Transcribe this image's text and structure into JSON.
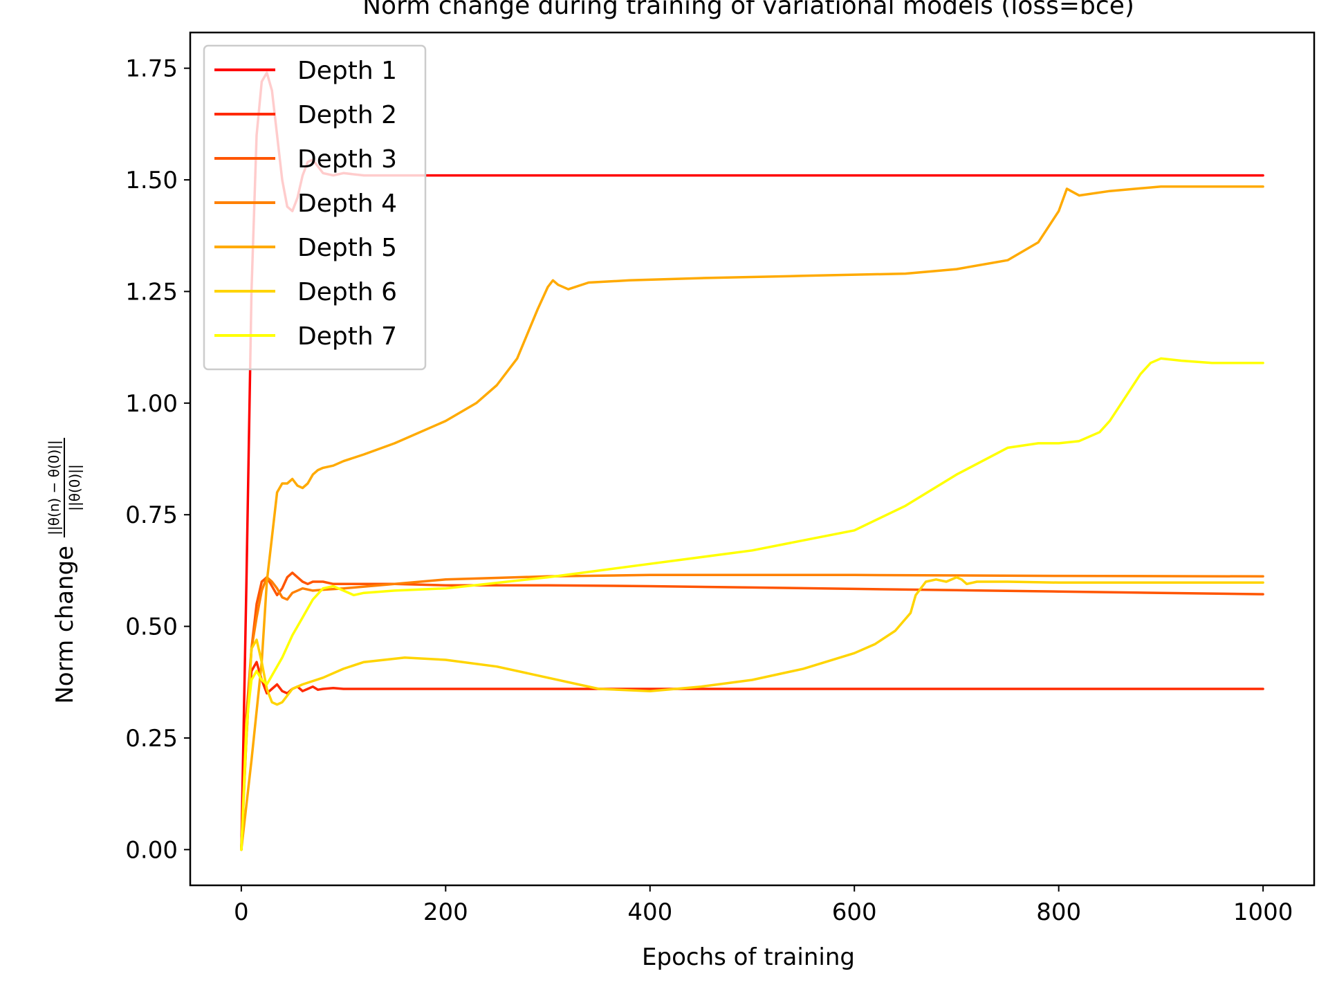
{
  "chart_data": {
    "type": "line",
    "title": "Norm change during training of variational models (loss=bce)",
    "xlabel": "Epochs of training",
    "ylabel": {
      "prefix": "Norm change",
      "numerator": "||θ(n) − θ(0)||",
      "denominator": "||θ(0)||"
    },
    "xlim": [
      -50,
      1050
    ],
    "ylim": [
      -0.08,
      1.83
    ],
    "xticks": [
      0,
      200,
      400,
      600,
      800,
      1000
    ],
    "xtick_labels": [
      "0",
      "200",
      "400",
      "600",
      "800",
      "1000"
    ],
    "yticks": [
      0.0,
      0.25,
      0.5,
      0.75,
      1.0,
      1.25,
      1.5,
      1.75
    ],
    "ytick_labels": [
      "0.00",
      "0.25",
      "0.50",
      "0.75",
      "1.00",
      "1.25",
      "1.50",
      "1.75"
    ],
    "grid": false,
    "legend": {
      "placement": "top-left",
      "frame_color": "#cccccc",
      "alpha": 0.8
    },
    "series": [
      {
        "name": "Depth 1",
        "color": "#ff0000",
        "x": [
          0,
          5,
          10,
          15,
          20,
          25,
          30,
          35,
          40,
          45,
          50,
          55,
          60,
          65,
          70,
          75,
          80,
          90,
          100,
          120,
          150,
          200,
          400,
          600,
          800,
          1000
        ],
        "y": [
          0.0,
          0.6,
          1.25,
          1.6,
          1.72,
          1.74,
          1.7,
          1.6,
          1.5,
          1.44,
          1.43,
          1.46,
          1.51,
          1.54,
          1.545,
          1.53,
          1.515,
          1.51,
          1.515,
          1.51,
          1.51,
          1.51,
          1.51,
          1.51,
          1.51,
          1.51
        ]
      },
      {
        "name": "Depth 2",
        "color": "#ff2a00",
        "x": [
          0,
          5,
          10,
          15,
          20,
          25,
          30,
          35,
          40,
          45,
          50,
          55,
          60,
          65,
          70,
          75,
          80,
          90,
          100,
          200,
          400,
          600,
          800,
          900,
          1000
        ],
        "y": [
          0.0,
          0.28,
          0.4,
          0.42,
          0.38,
          0.35,
          0.36,
          0.37,
          0.355,
          0.35,
          0.36,
          0.365,
          0.355,
          0.36,
          0.365,
          0.358,
          0.36,
          0.362,
          0.36,
          0.36,
          0.36,
          0.36,
          0.36,
          0.36,
          0.36
        ]
      },
      {
        "name": "Depth 3",
        "color": "#ff5500",
        "x": [
          0,
          5,
          10,
          15,
          20,
          25,
          30,
          35,
          40,
          45,
          50,
          55,
          60,
          65,
          70,
          80,
          90,
          100,
          150,
          200,
          300,
          400,
          500,
          600,
          700,
          800,
          900,
          1000
        ],
        "y": [
          0.0,
          0.3,
          0.45,
          0.55,
          0.6,
          0.61,
          0.59,
          0.57,
          0.585,
          0.61,
          0.62,
          0.61,
          0.6,
          0.595,
          0.6,
          0.6,
          0.595,
          0.595,
          0.595,
          0.592,
          0.592,
          0.59,
          0.587,
          0.584,
          0.581,
          0.578,
          0.575,
          0.572
        ]
      },
      {
        "name": "Depth 4",
        "color": "#ff8000",
        "x": [
          0,
          5,
          10,
          15,
          20,
          25,
          30,
          35,
          40,
          45,
          50,
          60,
          70,
          80,
          100,
          150,
          200,
          300,
          400,
          600,
          800,
          1000
        ],
        "y": [
          0.0,
          0.25,
          0.45,
          0.52,
          0.58,
          0.61,
          0.6,
          0.585,
          0.565,
          0.56,
          0.575,
          0.585,
          0.58,
          0.582,
          0.585,
          0.595,
          0.605,
          0.612,
          0.615,
          0.615,
          0.613,
          0.612
        ]
      },
      {
        "name": "Depth 5",
        "color": "#ffaa00",
        "x": [
          0,
          10,
          20,
          25,
          30,
          35,
          40,
          45,
          50,
          55,
          60,
          65,
          70,
          75,
          80,
          90,
          100,
          120,
          150,
          200,
          230,
          250,
          270,
          290,
          300,
          305,
          310,
          320,
          340,
          380,
          450,
          550,
          650,
          700,
          750,
          780,
          800,
          808,
          812,
          820,
          850,
          900,
          1000
        ],
        "y": [
          0.0,
          0.2,
          0.42,
          0.6,
          0.7,
          0.8,
          0.82,
          0.82,
          0.83,
          0.815,
          0.81,
          0.82,
          0.84,
          0.85,
          0.855,
          0.86,
          0.87,
          0.885,
          0.91,
          0.96,
          1.0,
          1.04,
          1.1,
          1.21,
          1.26,
          1.275,
          1.265,
          1.255,
          1.27,
          1.275,
          1.28,
          1.285,
          1.29,
          1.3,
          1.32,
          1.36,
          1.43,
          1.48,
          1.475,
          1.465,
          1.475,
          1.485,
          1.485
        ]
      },
      {
        "name": "Depth 6",
        "color": "#ffd400",
        "x": [
          0,
          5,
          10,
          15,
          20,
          25,
          30,
          35,
          40,
          50,
          60,
          80,
          100,
          120,
          160,
          200,
          250,
          300,
          350,
          400,
          450,
          500,
          550,
          600,
          620,
          640,
          655,
          660,
          670,
          680,
          690,
          700,
          705,
          710,
          720,
          750,
          800,
          1000
        ],
        "y": [
          0.0,
          0.25,
          0.45,
          0.47,
          0.42,
          0.36,
          0.33,
          0.325,
          0.33,
          0.36,
          0.37,
          0.385,
          0.405,
          0.42,
          0.43,
          0.425,
          0.41,
          0.385,
          0.36,
          0.355,
          0.365,
          0.38,
          0.405,
          0.44,
          0.46,
          0.49,
          0.53,
          0.57,
          0.6,
          0.605,
          0.6,
          0.61,
          0.605,
          0.595,
          0.6,
          0.6,
          0.598,
          0.598
        ]
      },
      {
        "name": "Depth 7",
        "color": "#ffff00",
        "x": [
          0,
          5,
          10,
          15,
          20,
          25,
          30,
          40,
          50,
          60,
          70,
          80,
          90,
          100,
          110,
          120,
          150,
          200,
          300,
          400,
          500,
          600,
          650,
          700,
          750,
          780,
          800,
          820,
          840,
          850,
          870,
          880,
          890,
          900,
          920,
          950,
          1000
        ],
        "y": [
          0.0,
          0.28,
          0.38,
          0.4,
          0.38,
          0.37,
          0.39,
          0.43,
          0.48,
          0.52,
          0.56,
          0.585,
          0.59,
          0.58,
          0.57,
          0.575,
          0.58,
          0.585,
          0.61,
          0.64,
          0.67,
          0.715,
          0.77,
          0.84,
          0.9,
          0.91,
          0.91,
          0.915,
          0.935,
          0.96,
          1.03,
          1.065,
          1.09,
          1.1,
          1.095,
          1.09,
          1.09
        ]
      }
    ]
  }
}
